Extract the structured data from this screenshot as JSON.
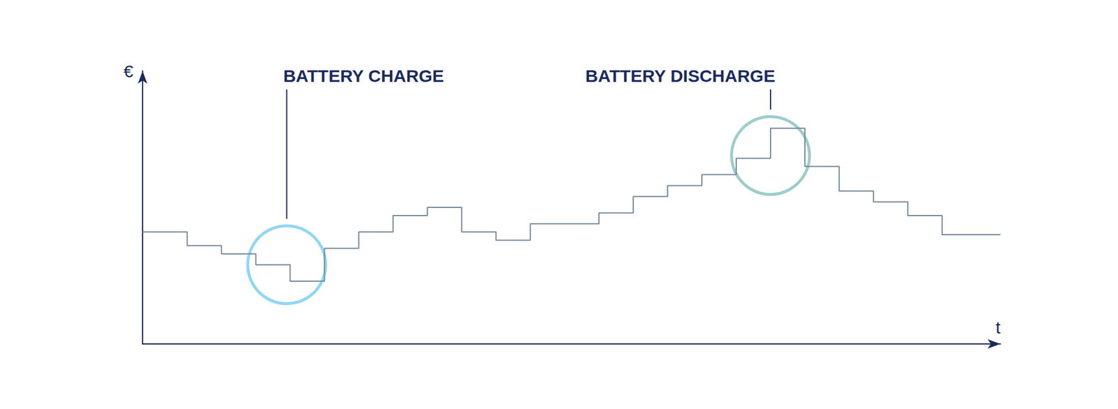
{
  "chart_data": {
    "type": "line",
    "x": [
      0,
      1.3,
      2.3,
      3.3,
      4.3,
      5.3,
      6.3,
      7.3,
      8.3,
      9.3,
      10.3,
      11.3,
      12.3,
      13.3,
      14.3,
      15.3,
      16.3,
      17.3,
      18.3,
      19.3,
      20.3,
      21.3,
      22.3,
      23.3,
      25
    ],
    "values": [
      41,
      36,
      33,
      29,
      23,
      35,
      41,
      47,
      50,
      41,
      38,
      44,
      44,
      48,
      54,
      58,
      62,
      68,
      79,
      65,
      56,
      52,
      47,
      40,
      40
    ],
    "color": "#71889a",
    "xlim": [
      0,
      25
    ],
    "ylim": [
      0,
      100
    ],
    "xlabel": "t",
    "ylabel": "€",
    "grid": false,
    "tick_labels": false,
    "line_style": "step",
    "annotations": [
      {
        "text": "BATTERY CHARGE",
        "x": 4.2,
        "y": 29,
        "color": "#8fd6f6"
      },
      {
        "text": "BATTERY DISCHARGE",
        "x": 18.3,
        "y": 69,
        "color": "#9ccdca"
      }
    ]
  }
}
